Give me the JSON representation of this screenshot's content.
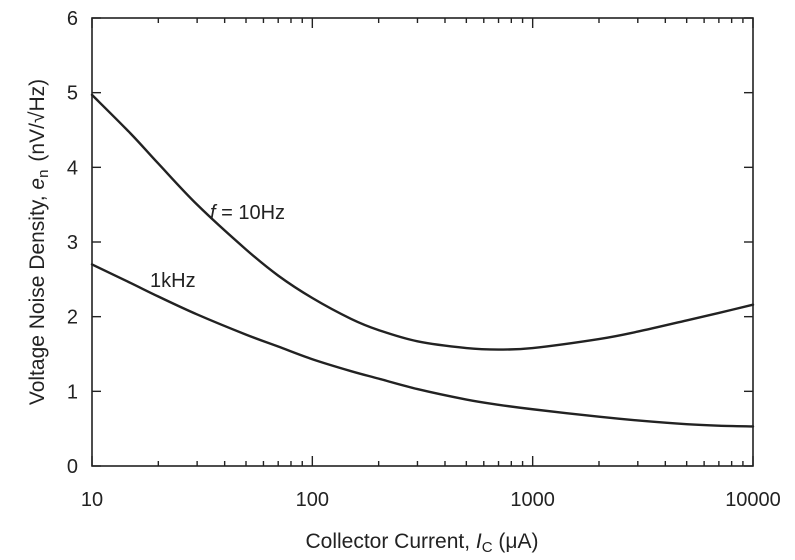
{
  "chart_data": {
    "type": "line",
    "xscale": "log",
    "xlim": [
      10,
      10000
    ],
    "ylim": [
      0,
      6
    ],
    "grid": false,
    "x_ticks": [
      "10",
      "100",
      "1000",
      "10000"
    ],
    "y_ticks": [
      "0",
      "1",
      "2",
      "3",
      "4",
      "5",
      "6"
    ],
    "xlabel": {
      "prefix": "Collector Current, ",
      "symbol": "I",
      "subscript": "C",
      "suffix": " (μA)"
    },
    "ylabel": {
      "prefix": "Voltage Noise Density, ",
      "symbol": "e",
      "subscript": "n",
      "suffix": "(nV/√Hz)"
    },
    "series": [
      {
        "name": "f = 10Hz",
        "x": [
          10,
          15,
          20,
          30,
          50,
          70,
          100,
          150,
          200,
          300,
          500,
          700,
          1000,
          2000,
          3000,
          5000,
          7000,
          10000
        ],
        "y": [
          4.97,
          4.45,
          4.05,
          3.5,
          2.9,
          2.55,
          2.25,
          1.97,
          1.82,
          1.67,
          1.58,
          1.56,
          1.58,
          1.7,
          1.8,
          1.95,
          2.05,
          2.16
        ]
      },
      {
        "name": "1kHz",
        "x": [
          10,
          15,
          20,
          30,
          50,
          70,
          100,
          150,
          200,
          300,
          500,
          700,
          1000,
          2000,
          3000,
          5000,
          7000,
          10000
        ],
        "y": [
          2.7,
          2.45,
          2.27,
          2.03,
          1.76,
          1.6,
          1.43,
          1.27,
          1.17,
          1.03,
          0.89,
          0.82,
          0.76,
          0.66,
          0.61,
          0.56,
          0.54,
          0.53
        ]
      }
    ],
    "annotations": [
      {
        "prefix": "",
        "italic": "f",
        "text": " = 10Hz",
        "series": "f = 10Hz"
      },
      {
        "prefix": "1kHz",
        "italic": "",
        "text": "",
        "series": "1kHz"
      }
    ]
  }
}
